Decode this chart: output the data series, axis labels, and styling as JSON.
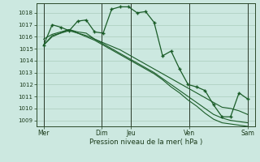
{
  "bg_color": "#cce8e0",
  "grid_color": "#aaccbb",
  "line_color": "#1a5c28",
  "marker_color": "#1a5c28",
  "xlabel": "Pression niveau de la mer( hPa )",
  "ylim": [
    1008.5,
    1018.8
  ],
  "yticks": [
    1009,
    1010,
    1011,
    1012,
    1013,
    1014,
    1015,
    1016,
    1017,
    1018
  ],
  "xtick_labels": [
    "Mer",
    "Dim",
    "Jeu",
    "Ven",
    "Sam"
  ],
  "xtick_positions": [
    0,
    4,
    6,
    10,
    14
  ],
  "vlines": [
    0,
    4,
    6,
    10,
    14
  ],
  "series": [
    [
      1015.3,
      1017.0,
      1016.8,
      1016.5,
      1017.3,
      1017.4,
      1016.4,
      1016.3,
      1018.3,
      1018.5,
      1018.5,
      1018.0,
      1018.1,
      1017.2,
      1014.4,
      1014.8,
      1013.3,
      1012.0,
      1011.8,
      1011.5,
      1010.3,
      1009.3,
      1009.3,
      1011.3,
      1010.8
    ],
    [
      1015.8,
      1016.2,
      1016.4,
      1016.6,
      1016.4,
      1016.3,
      1015.8,
      1015.5,
      1015.2,
      1014.9,
      1014.5,
      1014.1,
      1013.7,
      1013.3,
      1012.9,
      1012.5,
      1012.1,
      1011.7,
      1011.3,
      1010.9,
      1010.5,
      1010.1,
      1010.0,
      1009.8,
      1009.5
    ],
    [
      1015.3,
      1016.0,
      1016.3,
      1016.5,
      1016.3,
      1016.1,
      1015.8,
      1015.4,
      1015.0,
      1014.6,
      1014.2,
      1013.8,
      1013.4,
      1013.0,
      1012.5,
      1012.0,
      1011.5,
      1011.0,
      1010.5,
      1010.0,
      1009.5,
      1009.2,
      1009.0,
      1008.9,
      1008.8
    ],
    [
      1015.3,
      1016.1,
      1016.3,
      1016.6,
      1016.3,
      1016.0,
      1015.7,
      1015.3,
      1014.9,
      1014.5,
      1014.1,
      1013.7,
      1013.3,
      1012.9,
      1012.4,
      1011.8,
      1011.3,
      1010.7,
      1010.2,
      1009.6,
      1009.1,
      1008.8,
      1008.7,
      1008.6,
      1008.5
    ]
  ],
  "n_points": 25
}
